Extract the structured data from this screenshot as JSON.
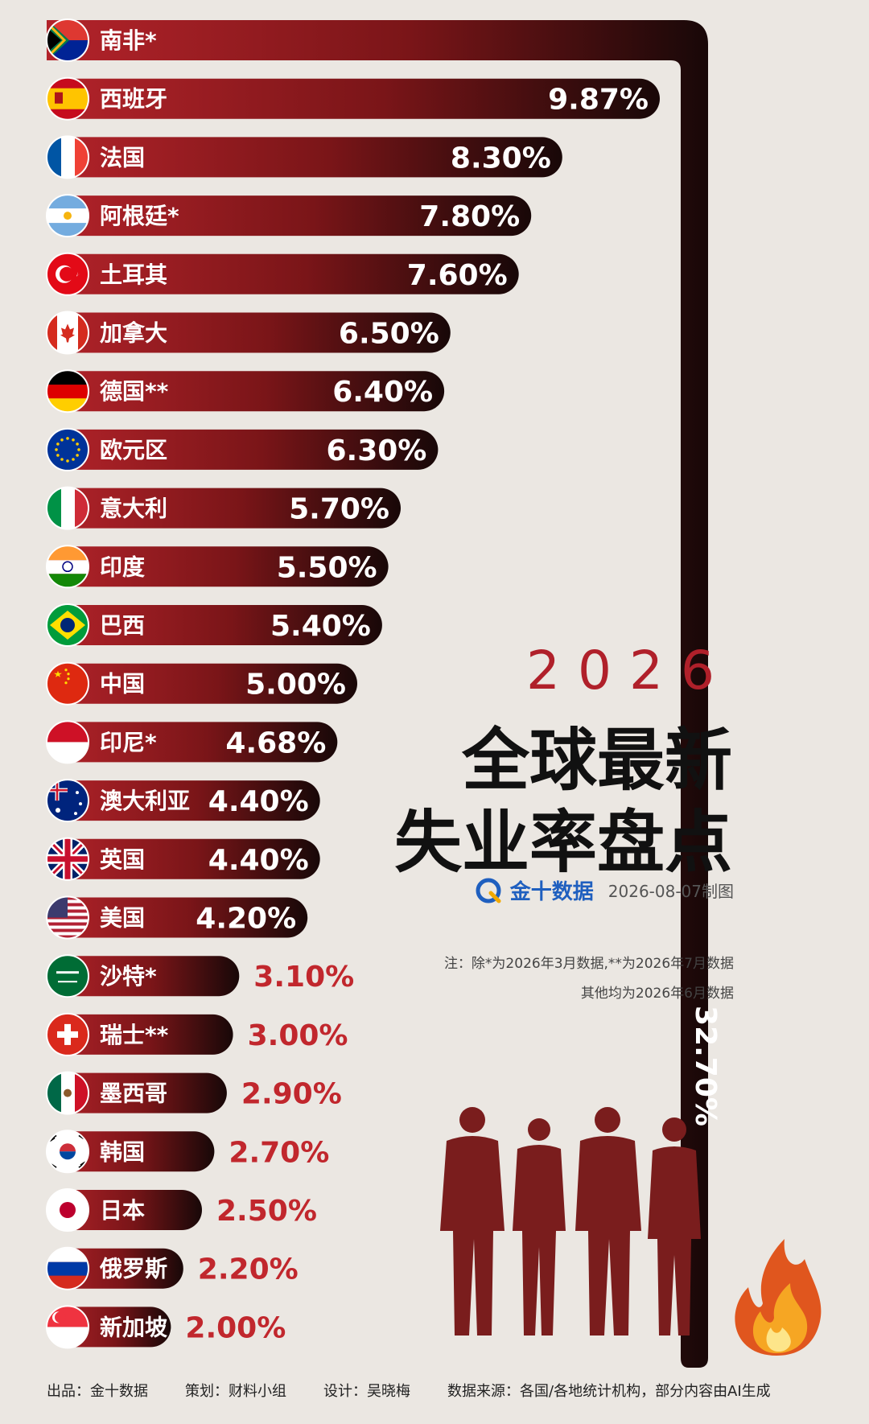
{
  "chart_data": {
    "type": "bar",
    "orientation": "horizontal",
    "categories": [
      "南非*",
      "西班牙",
      "法国",
      "阿根廷*",
      "土耳其",
      "加拿大",
      "德国**",
      "欧元区",
      "意大利",
      "印度",
      "巴西",
      "中国",
      "印尼*",
      "澳大利亚",
      "英国",
      "美国",
      "沙特*",
      "瑞士**",
      "墨西哥",
      "韩国",
      "日本",
      "俄罗斯",
      "新加坡"
    ],
    "values": [
      32.7,
      9.87,
      8.3,
      7.8,
      7.6,
      6.5,
      6.4,
      6.3,
      5.7,
      5.5,
      5.4,
      5.0,
      4.68,
      4.4,
      4.4,
      4.2,
      3.1,
      3.0,
      2.9,
      2.7,
      2.5,
      2.2,
      2.0
    ],
    "value_labels": [
      "32.70%",
      "9.87%",
      "8.30%",
      "7.80%",
      "7.60%",
      "6.50%",
      "6.40%",
      "6.30%",
      "5.70%",
      "5.50%",
      "5.40%",
      "5.00%",
      "4.68%",
      "4.40%",
      "4.40%",
      "4.20%",
      "3.10%",
      "3.00%",
      "2.90%",
      "2.70%",
      "2.50%",
      "2.20%",
      "2.00%"
    ],
    "flags": [
      "south-africa-flag-icon",
      "spain-flag-icon",
      "france-flag-icon",
      "argentina-flag-icon",
      "turkey-flag-icon",
      "canada-flag-icon",
      "germany-flag-icon",
      "eurozone-flag-icon",
      "italy-flag-icon",
      "india-flag-icon",
      "brazil-flag-icon",
      "china-flag-icon",
      "indonesia-flag-icon",
      "australia-flag-icon",
      "uk-flag-icon",
      "usa-flag-icon",
      "saudi-arabia-flag-icon",
      "switzerland-flag-icon",
      "mexico-flag-icon",
      "south-korea-flag-icon",
      "japan-flag-icon",
      "russia-flag-icon",
      "singapore-flag-icon"
    ],
    "title": "全球最新失业率盘点",
    "bar_gradient": [
      "#b3232a",
      "#1a0a0a"
    ],
    "value_color_outside": "#c1272d"
  },
  "title": {
    "year": "2026",
    "line1": "全球最新",
    "line2": "失业率盘点"
  },
  "brand": {
    "name": "金十数据",
    "made": "2026-08-07制图",
    "logo_icon": "jin10-logo-icon"
  },
  "notes": {
    "line1": "注：除*为2026年3月数据,**为2026年7月数据",
    "line2": "其他均为2026年6月数据"
  },
  "footer": {
    "producer": "出品：金十数据",
    "planner": "策划：财料小组",
    "designer": "设计：吴晓梅",
    "source": "数据来源：各国/各地统计机构，部分内容由AI生成"
  },
  "decor": {
    "people_icon": "people-silhouettes-icon",
    "flame_icon": "flame-icon"
  }
}
